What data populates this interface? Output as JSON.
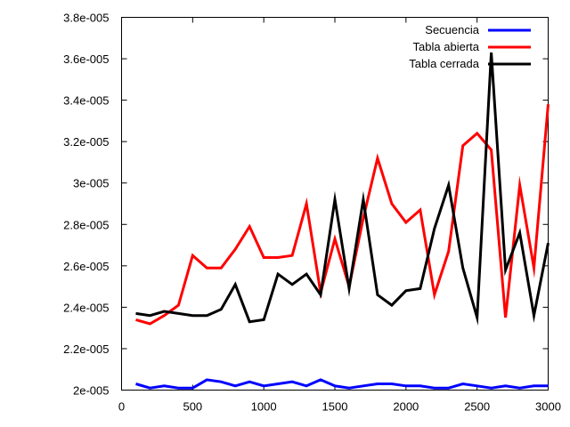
{
  "chart_data": {
    "type": "line",
    "title": "",
    "xlabel": "",
    "ylabel": "",
    "xlim": [
      0,
      3000
    ],
    "ylim": [
      2e-05,
      3.8e-05
    ],
    "x_ticks": [
      0,
      500,
      1000,
      1500,
      2000,
      2500,
      3000
    ],
    "x_tick_labels": [
      "0",
      "500",
      "1000",
      "1500",
      "2000",
      "2500",
      "3000"
    ],
    "y_ticks": [
      2e-05,
      2.2e-05,
      2.4e-05,
      2.6e-05,
      2.8e-05,
      3e-05,
      3.2e-05,
      3.4e-05,
      3.6e-05,
      3.8e-05
    ],
    "y_tick_labels": [
      "2e-005",
      "2.2e-005",
      "2.4e-005",
      "2.6e-005",
      "2.8e-005",
      "3e-005",
      "3.2e-005",
      "3.4e-005",
      "3.6e-005",
      "3.8e-005"
    ],
    "grid": false,
    "legend_position": "top-right",
    "x": [
      100,
      200,
      300,
      400,
      500,
      600,
      700,
      800,
      900,
      1000,
      1100,
      1200,
      1300,
      1400,
      1500,
      1600,
      1700,
      1800,
      1900,
      2000,
      2100,
      2200,
      2300,
      2400,
      2500,
      2600,
      2700,
      2800,
      2900,
      3000
    ],
    "series": [
      {
        "name": "Secuencia",
        "color": "#0000ff",
        "values": [
          2.03e-05,
          2.01e-05,
          2.02e-05,
          2.01e-05,
          2.01e-05,
          2.05e-05,
          2.04e-05,
          2.02e-05,
          2.04e-05,
          2.02e-05,
          2.03e-05,
          2.04e-05,
          2.02e-05,
          2.05e-05,
          2.02e-05,
          2.01e-05,
          2.02e-05,
          2.03e-05,
          2.03e-05,
          2.02e-05,
          2.02e-05,
          2.01e-05,
          2.01e-05,
          2.03e-05,
          2.02e-05,
          2.01e-05,
          2.02e-05,
          2.01e-05,
          2.02e-05,
          2.02e-05
        ]
      },
      {
        "name": "Tabla abierta",
        "color": "#ff0000",
        "values": [
          2.34e-05,
          2.32e-05,
          2.36e-05,
          2.41e-05,
          2.65e-05,
          2.59e-05,
          2.59e-05,
          2.68e-05,
          2.79e-05,
          2.64e-05,
          2.64e-05,
          2.65e-05,
          2.9e-05,
          2.47e-05,
          2.73e-05,
          2.5e-05,
          2.83e-05,
          3.12e-05,
          2.9e-05,
          2.81e-05,
          2.87e-05,
          2.46e-05,
          2.67e-05,
          3.18e-05,
          3.24e-05,
          3.16e-05,
          2.35e-05,
          2.99e-05,
          2.59e-05,
          3.38e-05
        ]
      },
      {
        "name": "Tabla cerrada",
        "color": "#000000",
        "values": [
          2.37e-05,
          2.36e-05,
          2.38e-05,
          2.37e-05,
          2.36e-05,
          2.36e-05,
          2.39e-05,
          2.51e-05,
          2.33e-05,
          2.34e-05,
          2.56e-05,
          2.51e-05,
          2.56e-05,
          2.46e-05,
          2.92e-05,
          2.49e-05,
          2.92e-05,
          2.46e-05,
          2.41e-05,
          2.48e-05,
          2.49e-05,
          2.78e-05,
          2.99e-05,
          2.59e-05,
          2.35e-05,
          3.63e-05,
          2.58e-05,
          2.76e-05,
          2.36e-05,
          2.71e-05
        ]
      }
    ]
  }
}
